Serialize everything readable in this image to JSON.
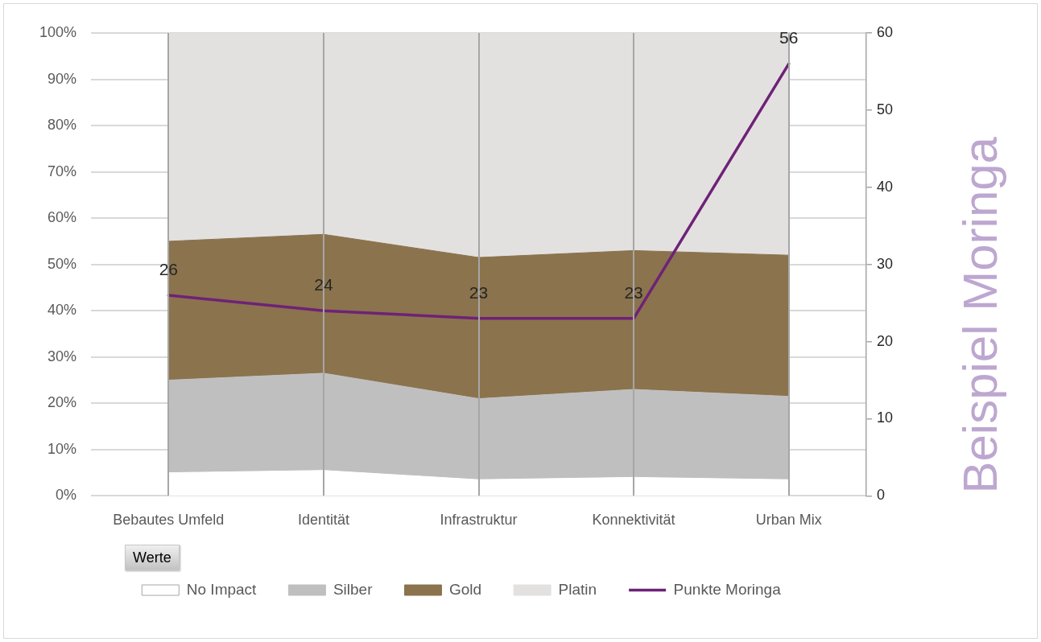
{
  "chart_data": {
    "type": "area",
    "stacked": true,
    "categories": [
      "Bebautes Umfeld",
      "Identität",
      "Infrastruktur",
      "Konnektivität",
      "Urban Mix"
    ],
    "series": [
      {
        "name": "No Impact",
        "color": "#ffffff",
        "values": [
          5,
          5.5,
          3.5,
          4,
          3.5
        ]
      },
      {
        "name": "Silber",
        "color": "#bfbfbf",
        "values": [
          20,
          21,
          17.5,
          19,
          18
        ]
      },
      {
        "name": "Gold",
        "color": "#8b734d",
        "values": [
          30,
          30,
          30.5,
          30,
          30.5
        ]
      },
      {
        "name": "Platin",
        "color": "#e3e1e0",
        "values": [
          45,
          43.5,
          48.5,
          47,
          48
        ]
      },
      {
        "name": "Punkte Moringa",
        "type": "line",
        "axis": "y2",
        "color": "#6e2278",
        "values": [
          26,
          24,
          23,
          23,
          56
        ],
        "value_labels": [
          "26",
          "24",
          "23",
          "23",
          "56"
        ]
      }
    ],
    "ylim": [
      0,
      100
    ],
    "yticks": [
      {
        "value": 0,
        "label": "0%"
      },
      {
        "value": 10,
        "label": "10%"
      },
      {
        "value": 20,
        "label": "20%"
      },
      {
        "value": 30,
        "label": "30%"
      },
      {
        "value": 40,
        "label": "40%"
      },
      {
        "value": 50,
        "label": "50%"
      },
      {
        "value": 60,
        "label": "60%"
      },
      {
        "value": 70,
        "label": "70%"
      },
      {
        "value": 80,
        "label": "80%"
      },
      {
        "value": 90,
        "label": "90%"
      },
      {
        "value": 100,
        "label": "100%"
      }
    ],
    "y2lim": [
      0,
      60
    ],
    "y2ticks": [
      0,
      10,
      20,
      30,
      40,
      50,
      60
    ],
    "y2label": "Beispiel Moringa",
    "annotations": [
      "Werte"
    ],
    "grid": true,
    "legend": "bottom",
    "marker": "none",
    "line_style": "solid"
  }
}
